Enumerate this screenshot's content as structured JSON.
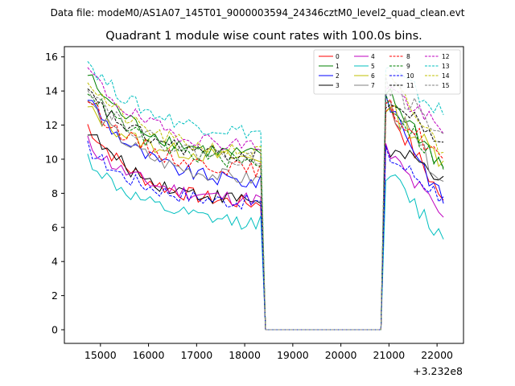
{
  "chart_data": {
    "type": "line",
    "suptitle": "Data file: modeM0/AS1A07_145T01_9000003594_24346cztM0_level2_quad_clean.evt",
    "title": "Quadrant 1 module wise count rates with 100.0s bins.",
    "xlabel": "",
    "ylabel": "",
    "x_offset_label": "+3.232e8",
    "xlim": [
      14250,
      22550
    ],
    "ylim": [
      -0.8,
      16.6
    ],
    "xticks": [
      15000,
      16000,
      17000,
      18000,
      19000,
      20000,
      21000,
      22000
    ],
    "yticks": [
      0,
      2,
      4,
      6,
      8,
      10,
      12,
      14,
      16
    ],
    "x_tick_labels": [
      "15000",
      "16000",
      "17000",
      "18000",
      "19000",
      "20000",
      "21000",
      "22000"
    ],
    "y_tick_labels": [
      "0",
      "2",
      "4",
      "6",
      "8",
      "10",
      "12",
      "14",
      "16"
    ],
    "legend_position": "top-right",
    "segments": [
      {
        "x_start": 14733,
        "x_end": 18333,
        "step": 100
      },
      {
        "x_end_gap": 20833
      },
      {
        "x_start": 20933,
        "x_end": 22133,
        "step": 100
      }
    ],
    "gap_x": [
      18433,
      20833
    ],
    "series": [
      {
        "name": "0",
        "color": "#ff0000",
        "dash": "solid",
        "start": 12.0,
        "plateau": 7.2,
        "seg2_start": 13.2,
        "seg2_end": 7.6
      },
      {
        "name": "1",
        "color": "#008000",
        "dash": "solid",
        "start": 15.0,
        "plateau": 10.0,
        "seg2_start": 14.0,
        "seg2_end": 9.5
      },
      {
        "name": "2",
        "color": "#0000ff",
        "dash": "solid",
        "start": 13.7,
        "plateau": 8.4,
        "seg2_start": 13.8,
        "seg2_end": 7.4
      },
      {
        "name": "3",
        "color": "#000000",
        "dash": "solid",
        "start": 11.8,
        "plateau": 7.4,
        "seg2_start": 10.6,
        "seg2_end": 9.0
      },
      {
        "name": "4",
        "color": "#bf00bf",
        "dash": "solid",
        "start": 11.0,
        "plateau": 7.5,
        "seg2_start": 10.5,
        "seg2_end": 6.6
      },
      {
        "name": "5",
        "color": "#00bfbf",
        "dash": "solid",
        "start": 10.1,
        "plateau": 6.1,
        "seg2_start": 9.3,
        "seg2_end": 5.3
      },
      {
        "name": "6",
        "color": "#bfbf00",
        "dash": "solid",
        "start": 13.0,
        "plateau": 9.9,
        "seg2_start": 13.1,
        "seg2_end": 9.9
      },
      {
        "name": "7",
        "color": "#808080",
        "dash": "solid",
        "start": 13.5,
        "plateau": 8.6,
        "seg2_start": 13.4,
        "seg2_end": 8.7
      },
      {
        "name": "8",
        "color": "#ff0000",
        "dash": "dashed",
        "start": 13.6,
        "plateau": 9.2,
        "seg2_start": 13.2,
        "seg2_end": 10.0
      },
      {
        "name": "9",
        "color": "#008000",
        "dash": "dashed",
        "start": 14.2,
        "plateau": 9.6,
        "seg2_start": 13.6,
        "seg2_end": 9.4
      },
      {
        "name": "10",
        "color": "#0000ff",
        "dash": "dashed",
        "start": 10.7,
        "plateau": 7.3,
        "seg2_start": 10.3,
        "seg2_end": 7.8
      },
      {
        "name": "11",
        "color": "#000000",
        "dash": "dashed",
        "start": 13.9,
        "plateau": 10.0,
        "seg2_start": 13.5,
        "seg2_end": 11.0
      },
      {
        "name": "12",
        "color": "#bf00bf",
        "dash": "dashed",
        "start": 15.3,
        "plateau": 10.6,
        "seg2_start": 14.4,
        "seg2_end": 11.5
      },
      {
        "name": "13",
        "color": "#00bfbf",
        "dash": "dashed",
        "start": 15.8,
        "plateau": 11.4,
        "seg2_start": 15.4,
        "seg2_end": 12.6
      },
      {
        "name": "14",
        "color": "#bfbf00",
        "dash": "dashed",
        "start": 14.7,
        "plateau": 10.2,
        "seg2_start": 14.8,
        "seg2_end": 10.4
      },
      {
        "name": "15",
        "color": "#808080",
        "dash": "dashed",
        "start": 14.4,
        "plateau": 9.8,
        "seg2_start": 14.5,
        "seg2_end": 11.5
      }
    ]
  }
}
